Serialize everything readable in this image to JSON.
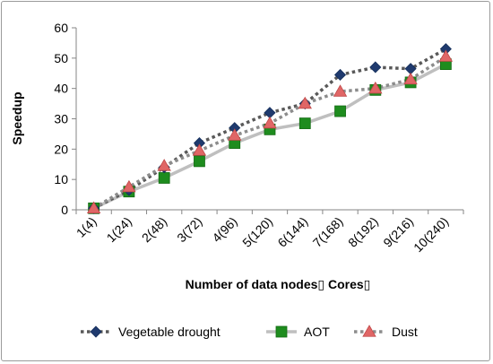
{
  "chart_data": {
    "type": "line",
    "title": "",
    "xlabel": "Number of data nodes▯ Cores▯",
    "ylabel": "Speedup",
    "ylim": [
      0,
      60
    ],
    "yticks": [
      0,
      10,
      20,
      30,
      40,
      50,
      60
    ],
    "categories": [
      "1(4)",
      "1(24)",
      "2(48)",
      "3(72)",
      "4(96)",
      "5(120)",
      "6(144)",
      "7(168)",
      "8(192)",
      "9(216)",
      "10(240)"
    ],
    "grid": false,
    "legend_position": "bottom",
    "series": [
      {
        "name": "Vegetable drought",
        "values": [
          0.5,
          6.5,
          14,
          22,
          27,
          32,
          35,
          44.5,
          47,
          46.5,
          53
        ],
        "color": "#1f3a6e",
        "line_color": "#595959",
        "line_style": "dotted",
        "marker": "diamond"
      },
      {
        "name": "AOT",
        "values": [
          0.5,
          6,
          10.5,
          16,
          22,
          26.5,
          28.5,
          32.5,
          39.5,
          42,
          48
        ],
        "color": "#1e8c1e",
        "line_color": "#bfbfbf",
        "line_style": "solid",
        "marker": "square"
      },
      {
        "name": "Dust",
        "values": [
          0.5,
          7.5,
          14.5,
          19.5,
          24.5,
          28.5,
          35,
          39,
          40,
          43,
          50.5
        ],
        "color": "#e06666",
        "line_color": "#8c8c8c",
        "line_style": "dotted",
        "marker": "triangle"
      }
    ]
  }
}
